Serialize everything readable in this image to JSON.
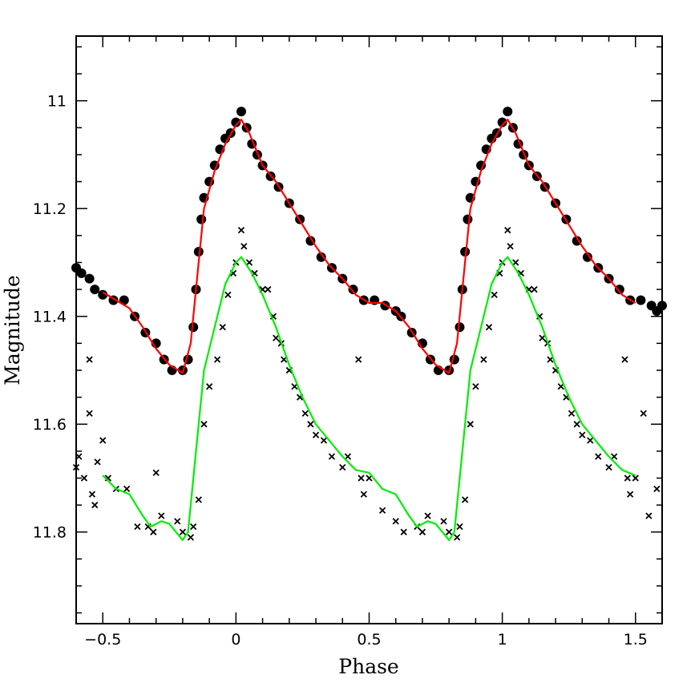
{
  "chart_data": {
    "type": "scatter",
    "title": "",
    "xlabel": "Phase",
    "ylabel": "Magnitude",
    "xlim": [
      -0.6,
      1.6
    ],
    "ylim": [
      10.88,
      11.97
    ],
    "y_inverted": true,
    "grid": false,
    "xticks": [
      -0.5,
      0,
      0.5,
      1,
      1.5
    ],
    "xtick_labels": [
      "−0.5",
      "0",
      "0.5",
      "1",
      "1.5"
    ],
    "yticks": [
      11,
      11.2,
      11.4,
      11.6,
      11.8
    ],
    "ytick_labels": [
      "11",
      "11.2",
      "11.4",
      "11.6",
      "11.8"
    ],
    "colors": {
      "fit_upper": "#ff0000",
      "fit_lower": "#00ee00",
      "points": "#000000"
    },
    "series": [
      {
        "marker": "filled-circle",
        "points": [
          [
            -0.6,
            11.31
          ],
          [
            -0.58,
            11.32
          ],
          [
            -0.55,
            11.33
          ],
          [
            -0.53,
            11.35
          ],
          [
            -0.5,
            11.36
          ],
          [
            -0.46,
            11.37
          ],
          [
            -0.42,
            11.37
          ],
          [
            -0.38,
            11.4
          ],
          [
            -0.34,
            11.43
          ],
          [
            -0.3,
            11.45
          ],
          [
            -0.27,
            11.48
          ],
          [
            -0.24,
            11.5
          ],
          [
            -0.2,
            11.5
          ],
          [
            -0.18,
            11.48
          ],
          [
            -0.16,
            11.42
          ],
          [
            -0.15,
            11.35
          ],
          [
            -0.14,
            11.28
          ],
          [
            -0.13,
            11.22
          ],
          [
            -0.12,
            11.18
          ],
          [
            -0.1,
            11.15
          ],
          [
            -0.08,
            11.12
          ],
          [
            -0.06,
            11.09
          ],
          [
            -0.04,
            11.07
          ],
          [
            -0.02,
            11.06
          ],
          [
            0,
            11.04
          ],
          [
            0.02,
            11.02
          ],
          [
            0.04,
            11.05
          ],
          [
            0.06,
            11.08
          ],
          [
            0.08,
            11.1
          ],
          [
            0.1,
            11.12
          ],
          [
            0.13,
            11.14
          ],
          [
            0.16,
            11.16
          ],
          [
            0.2,
            11.19
          ],
          [
            0.24,
            11.22
          ],
          [
            0.28,
            11.26
          ],
          [
            0.32,
            11.29
          ],
          [
            0.36,
            11.31
          ],
          [
            0.4,
            11.33
          ],
          [
            0.44,
            11.35
          ],
          [
            0.48,
            11.37
          ],
          [
            0.52,
            11.37
          ],
          [
            0.56,
            11.38
          ],
          [
            0.6,
            11.39
          ],
          [
            0.62,
            11.4
          ],
          [
            0.66,
            11.43
          ],
          [
            0.7,
            11.45
          ],
          [
            0.73,
            11.48
          ],
          [
            0.76,
            11.5
          ],
          [
            0.8,
            11.5
          ],
          [
            0.82,
            11.48
          ],
          [
            0.84,
            11.42
          ],
          [
            0.85,
            11.35
          ],
          [
            0.86,
            11.28
          ],
          [
            0.87,
            11.22
          ],
          [
            0.88,
            11.18
          ],
          [
            0.9,
            11.15
          ],
          [
            0.92,
            11.12
          ],
          [
            0.94,
            11.09
          ],
          [
            0.96,
            11.07
          ],
          [
            0.98,
            11.06
          ],
          [
            1.0,
            11.04
          ],
          [
            1.02,
            11.02
          ],
          [
            1.04,
            11.05
          ],
          [
            1.06,
            11.08
          ],
          [
            1.08,
            11.1
          ],
          [
            1.1,
            11.12
          ],
          [
            1.13,
            11.14
          ],
          [
            1.16,
            11.16
          ],
          [
            1.2,
            11.19
          ],
          [
            1.24,
            11.22
          ],
          [
            1.28,
            11.26
          ],
          [
            1.32,
            11.29
          ],
          [
            1.36,
            11.31
          ],
          [
            1.4,
            11.33
          ],
          [
            1.44,
            11.35
          ],
          [
            1.48,
            11.37
          ],
          [
            1.52,
            11.37
          ],
          [
            1.56,
            11.38
          ],
          [
            1.58,
            11.39
          ],
          [
            1.6,
            11.38
          ]
        ]
      },
      {
        "marker": "cross",
        "points": [
          [
            -0.6,
            11.68
          ],
          [
            -0.59,
            11.66
          ],
          [
            -0.57,
            11.7
          ],
          [
            -0.55,
            11.58
          ],
          [
            -0.55,
            11.48
          ],
          [
            -0.54,
            11.73
          ],
          [
            -0.53,
            11.75
          ],
          [
            -0.52,
            11.67
          ],
          [
            -0.5,
            11.63
          ],
          [
            -0.48,
            11.7
          ],
          [
            -0.45,
            11.72
          ],
          [
            -0.41,
            11.72
          ],
          [
            -0.37,
            11.79
          ],
          [
            -0.33,
            11.79
          ],
          [
            -0.31,
            11.8
          ],
          [
            -0.3,
            11.69
          ],
          [
            -0.28,
            11.77
          ],
          [
            -0.22,
            11.78
          ],
          [
            -0.2,
            11.8
          ],
          [
            -0.17,
            11.81
          ],
          [
            -0.16,
            11.79
          ],
          [
            -0.14,
            11.74
          ],
          [
            -0.12,
            11.6
          ],
          [
            -0.1,
            11.53
          ],
          [
            -0.07,
            11.48
          ],
          [
            -0.05,
            11.42
          ],
          [
            -0.03,
            11.36
          ],
          [
            -0.01,
            11.32
          ],
          [
            0.0,
            11.3
          ],
          [
            0.02,
            11.24
          ],
          [
            0.03,
            11.27
          ],
          [
            0.05,
            11.3
          ],
          [
            0.07,
            11.32
          ],
          [
            0.1,
            11.35
          ],
          [
            0.12,
            11.35
          ],
          [
            0.14,
            11.4
          ],
          [
            0.15,
            11.44
          ],
          [
            0.17,
            11.45
          ],
          [
            0.18,
            11.48
          ],
          [
            0.2,
            11.5
          ],
          [
            0.22,
            11.53
          ],
          [
            0.24,
            11.55
          ],
          [
            0.26,
            11.58
          ],
          [
            0.28,
            11.6
          ],
          [
            0.3,
            11.62
          ],
          [
            0.33,
            11.63
          ],
          [
            0.36,
            11.66
          ],
          [
            0.4,
            11.68
          ],
          [
            0.42,
            11.66
          ],
          [
            0.46,
            11.48
          ],
          [
            0.47,
            11.7
          ],
          [
            0.48,
            11.73
          ],
          [
            0.5,
            11.7
          ],
          [
            0.55,
            11.76
          ],
          [
            0.6,
            11.78
          ],
          [
            0.63,
            11.8
          ],
          [
            0.68,
            11.79
          ],
          [
            0.7,
            11.8
          ],
          [
            0.72,
            11.77
          ],
          [
            0.78,
            11.78
          ],
          [
            0.8,
            11.8
          ],
          [
            0.83,
            11.81
          ],
          [
            0.84,
            11.79
          ],
          [
            0.86,
            11.74
          ],
          [
            0.88,
            11.6
          ],
          [
            0.9,
            11.53
          ],
          [
            0.93,
            11.48
          ],
          [
            0.95,
            11.42
          ],
          [
            0.97,
            11.36
          ],
          [
            0.99,
            11.32
          ],
          [
            1.0,
            11.3
          ],
          [
            1.02,
            11.24
          ],
          [
            1.03,
            11.27
          ],
          [
            1.05,
            11.3
          ],
          [
            1.07,
            11.32
          ],
          [
            1.1,
            11.35
          ],
          [
            1.12,
            11.35
          ],
          [
            1.14,
            11.4
          ],
          [
            1.15,
            11.44
          ],
          [
            1.17,
            11.45
          ],
          [
            1.18,
            11.48
          ],
          [
            1.2,
            11.5
          ],
          [
            1.22,
            11.53
          ],
          [
            1.24,
            11.55
          ],
          [
            1.26,
            11.58
          ],
          [
            1.28,
            11.6
          ],
          [
            1.3,
            11.62
          ],
          [
            1.33,
            11.63
          ],
          [
            1.36,
            11.66
          ],
          [
            1.4,
            11.68
          ],
          [
            1.42,
            11.66
          ],
          [
            1.46,
            11.48
          ],
          [
            1.47,
            11.7
          ],
          [
            1.48,
            11.73
          ],
          [
            1.5,
            11.7
          ],
          [
            1.53,
            11.58
          ],
          [
            1.55,
            11.77
          ],
          [
            1.58,
            11.72
          ]
        ]
      },
      {
        "marker": "line",
        "color": "#ff0000",
        "points": [
          [
            -0.5,
            11.355
          ],
          [
            -0.45,
            11.37
          ],
          [
            -0.4,
            11.385
          ],
          [
            -0.35,
            11.42
          ],
          [
            -0.3,
            11.46
          ],
          [
            -0.25,
            11.49
          ],
          [
            -0.2,
            11.505
          ],
          [
            -0.17,
            11.45
          ],
          [
            -0.14,
            11.3
          ],
          [
            -0.12,
            11.2
          ],
          [
            -0.08,
            11.13
          ],
          [
            -0.04,
            11.08
          ],
          [
            0,
            11.045
          ],
          [
            0.02,
            11.035
          ],
          [
            0.05,
            11.06
          ],
          [
            0.1,
            11.12
          ],
          [
            0.15,
            11.15
          ],
          [
            0.2,
            11.19
          ],
          [
            0.25,
            11.23
          ],
          [
            0.3,
            11.27
          ],
          [
            0.35,
            11.305
          ],
          [
            0.4,
            11.33
          ],
          [
            0.45,
            11.36
          ],
          [
            0.5,
            11.375
          ],
          [
            0.55,
            11.375
          ],
          [
            0.6,
            11.39
          ],
          [
            0.65,
            11.42
          ],
          [
            0.7,
            11.46
          ],
          [
            0.75,
            11.49
          ],
          [
            0.8,
            11.505
          ],
          [
            0.83,
            11.45
          ],
          [
            0.86,
            11.3
          ],
          [
            0.88,
            11.2
          ],
          [
            0.92,
            11.13
          ],
          [
            0.96,
            11.08
          ],
          [
            1.0,
            11.045
          ],
          [
            1.02,
            11.035
          ],
          [
            1.05,
            11.06
          ],
          [
            1.1,
            11.12
          ],
          [
            1.15,
            11.15
          ],
          [
            1.2,
            11.19
          ],
          [
            1.25,
            11.23
          ],
          [
            1.3,
            11.27
          ],
          [
            1.35,
            11.305
          ],
          [
            1.4,
            11.33
          ],
          [
            1.45,
            11.36
          ],
          [
            1.5,
            11.375
          ]
        ]
      },
      {
        "marker": "line",
        "color": "#00ee00",
        "points": [
          [
            -0.5,
            11.695
          ],
          [
            -0.45,
            11.72
          ],
          [
            -0.4,
            11.73
          ],
          [
            -0.35,
            11.77
          ],
          [
            -0.32,
            11.79
          ],
          [
            -0.28,
            11.78
          ],
          [
            -0.25,
            11.785
          ],
          [
            -0.2,
            11.815
          ],
          [
            -0.18,
            11.8
          ],
          [
            -0.15,
            11.65
          ],
          [
            -0.12,
            11.5
          ],
          [
            -0.08,
            11.42
          ],
          [
            -0.04,
            11.34
          ],
          [
            0,
            11.3
          ],
          [
            0.02,
            11.29
          ],
          [
            0.06,
            11.32
          ],
          [
            0.1,
            11.36
          ],
          [
            0.15,
            11.42
          ],
          [
            0.2,
            11.49
          ],
          [
            0.25,
            11.55
          ],
          [
            0.3,
            11.6
          ],
          [
            0.35,
            11.63
          ],
          [
            0.4,
            11.66
          ],
          [
            0.45,
            11.685
          ],
          [
            0.5,
            11.69
          ],
          [
            0.55,
            11.72
          ],
          [
            0.6,
            11.73
          ],
          [
            0.65,
            11.77
          ],
          [
            0.68,
            11.79
          ],
          [
            0.72,
            11.78
          ],
          [
            0.75,
            11.785
          ],
          [
            0.8,
            11.815
          ],
          [
            0.82,
            11.8
          ],
          [
            0.85,
            11.65
          ],
          [
            0.88,
            11.5
          ],
          [
            0.92,
            11.42
          ],
          [
            0.96,
            11.34
          ],
          [
            1.0,
            11.3
          ],
          [
            1.02,
            11.29
          ],
          [
            1.06,
            11.32
          ],
          [
            1.1,
            11.36
          ],
          [
            1.15,
            11.42
          ],
          [
            1.2,
            11.49
          ],
          [
            1.25,
            11.55
          ],
          [
            1.3,
            11.6
          ],
          [
            1.35,
            11.63
          ],
          [
            1.4,
            11.66
          ],
          [
            1.45,
            11.685
          ],
          [
            1.5,
            11.695
          ]
        ]
      }
    ]
  }
}
